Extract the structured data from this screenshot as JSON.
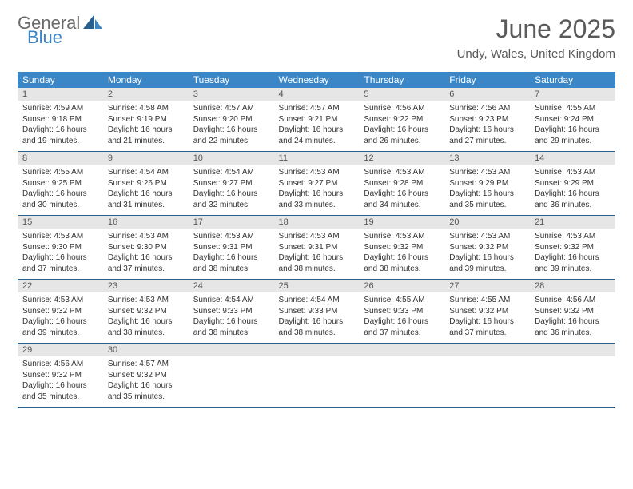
{
  "logo": {
    "line1": "General",
    "line2": "Blue"
  },
  "title": "June 2025",
  "location": "Undy, Wales, United Kingdom",
  "colors": {
    "header_bg": "#3b86c6",
    "header_text": "#ffffff",
    "daynum_bg": "#e6e6e6",
    "border": "#2b5f8c",
    "logo_gray": "#6a6a6a",
    "logo_blue": "#3b86c6"
  },
  "weekdays": [
    "Sunday",
    "Monday",
    "Tuesday",
    "Wednesday",
    "Thursday",
    "Friday",
    "Saturday"
  ],
  "typography": {
    "title_fontsize": 32,
    "location_fontsize": 15,
    "weekday_fontsize": 12,
    "daynum_fontsize": 11,
    "body_fontsize": 10
  },
  "weeks": [
    [
      {
        "num": "1",
        "sunrise": "4:59 AM",
        "sunset": "9:18 PM",
        "daylight": "16 hours and 19 minutes."
      },
      {
        "num": "2",
        "sunrise": "4:58 AM",
        "sunset": "9:19 PM",
        "daylight": "16 hours and 21 minutes."
      },
      {
        "num": "3",
        "sunrise": "4:57 AM",
        "sunset": "9:20 PM",
        "daylight": "16 hours and 22 minutes."
      },
      {
        "num": "4",
        "sunrise": "4:57 AM",
        "sunset": "9:21 PM",
        "daylight": "16 hours and 24 minutes."
      },
      {
        "num": "5",
        "sunrise": "4:56 AM",
        "sunset": "9:22 PM",
        "daylight": "16 hours and 26 minutes."
      },
      {
        "num": "6",
        "sunrise": "4:56 AM",
        "sunset": "9:23 PM",
        "daylight": "16 hours and 27 minutes."
      },
      {
        "num": "7",
        "sunrise": "4:55 AM",
        "sunset": "9:24 PM",
        "daylight": "16 hours and 29 minutes."
      }
    ],
    [
      {
        "num": "8",
        "sunrise": "4:55 AM",
        "sunset": "9:25 PM",
        "daylight": "16 hours and 30 minutes."
      },
      {
        "num": "9",
        "sunrise": "4:54 AM",
        "sunset": "9:26 PM",
        "daylight": "16 hours and 31 minutes."
      },
      {
        "num": "10",
        "sunrise": "4:54 AM",
        "sunset": "9:27 PM",
        "daylight": "16 hours and 32 minutes."
      },
      {
        "num": "11",
        "sunrise": "4:53 AM",
        "sunset": "9:27 PM",
        "daylight": "16 hours and 33 minutes."
      },
      {
        "num": "12",
        "sunrise": "4:53 AM",
        "sunset": "9:28 PM",
        "daylight": "16 hours and 34 minutes."
      },
      {
        "num": "13",
        "sunrise": "4:53 AM",
        "sunset": "9:29 PM",
        "daylight": "16 hours and 35 minutes."
      },
      {
        "num": "14",
        "sunrise": "4:53 AM",
        "sunset": "9:29 PM",
        "daylight": "16 hours and 36 minutes."
      }
    ],
    [
      {
        "num": "15",
        "sunrise": "4:53 AM",
        "sunset": "9:30 PM",
        "daylight": "16 hours and 37 minutes."
      },
      {
        "num": "16",
        "sunrise": "4:53 AM",
        "sunset": "9:30 PM",
        "daylight": "16 hours and 37 minutes."
      },
      {
        "num": "17",
        "sunrise": "4:53 AM",
        "sunset": "9:31 PM",
        "daylight": "16 hours and 38 minutes."
      },
      {
        "num": "18",
        "sunrise": "4:53 AM",
        "sunset": "9:31 PM",
        "daylight": "16 hours and 38 minutes."
      },
      {
        "num": "19",
        "sunrise": "4:53 AM",
        "sunset": "9:32 PM",
        "daylight": "16 hours and 38 minutes."
      },
      {
        "num": "20",
        "sunrise": "4:53 AM",
        "sunset": "9:32 PM",
        "daylight": "16 hours and 39 minutes."
      },
      {
        "num": "21",
        "sunrise": "4:53 AM",
        "sunset": "9:32 PM",
        "daylight": "16 hours and 39 minutes."
      }
    ],
    [
      {
        "num": "22",
        "sunrise": "4:53 AM",
        "sunset": "9:32 PM",
        "daylight": "16 hours and 39 minutes."
      },
      {
        "num": "23",
        "sunrise": "4:53 AM",
        "sunset": "9:32 PM",
        "daylight": "16 hours and 38 minutes."
      },
      {
        "num": "24",
        "sunrise": "4:54 AM",
        "sunset": "9:33 PM",
        "daylight": "16 hours and 38 minutes."
      },
      {
        "num": "25",
        "sunrise": "4:54 AM",
        "sunset": "9:33 PM",
        "daylight": "16 hours and 38 minutes."
      },
      {
        "num": "26",
        "sunrise": "4:55 AM",
        "sunset": "9:33 PM",
        "daylight": "16 hours and 37 minutes."
      },
      {
        "num": "27",
        "sunrise": "4:55 AM",
        "sunset": "9:32 PM",
        "daylight": "16 hours and 37 minutes."
      },
      {
        "num": "28",
        "sunrise": "4:56 AM",
        "sunset": "9:32 PM",
        "daylight": "16 hours and 36 minutes."
      }
    ],
    [
      {
        "num": "29",
        "sunrise": "4:56 AM",
        "sunset": "9:32 PM",
        "daylight": "16 hours and 35 minutes."
      },
      {
        "num": "30",
        "sunrise": "4:57 AM",
        "sunset": "9:32 PM",
        "daylight": "16 hours and 35 minutes."
      },
      null,
      null,
      null,
      null,
      null
    ]
  ],
  "labels": {
    "sunrise": "Sunrise:",
    "sunset": "Sunset:",
    "daylight": "Daylight:"
  }
}
